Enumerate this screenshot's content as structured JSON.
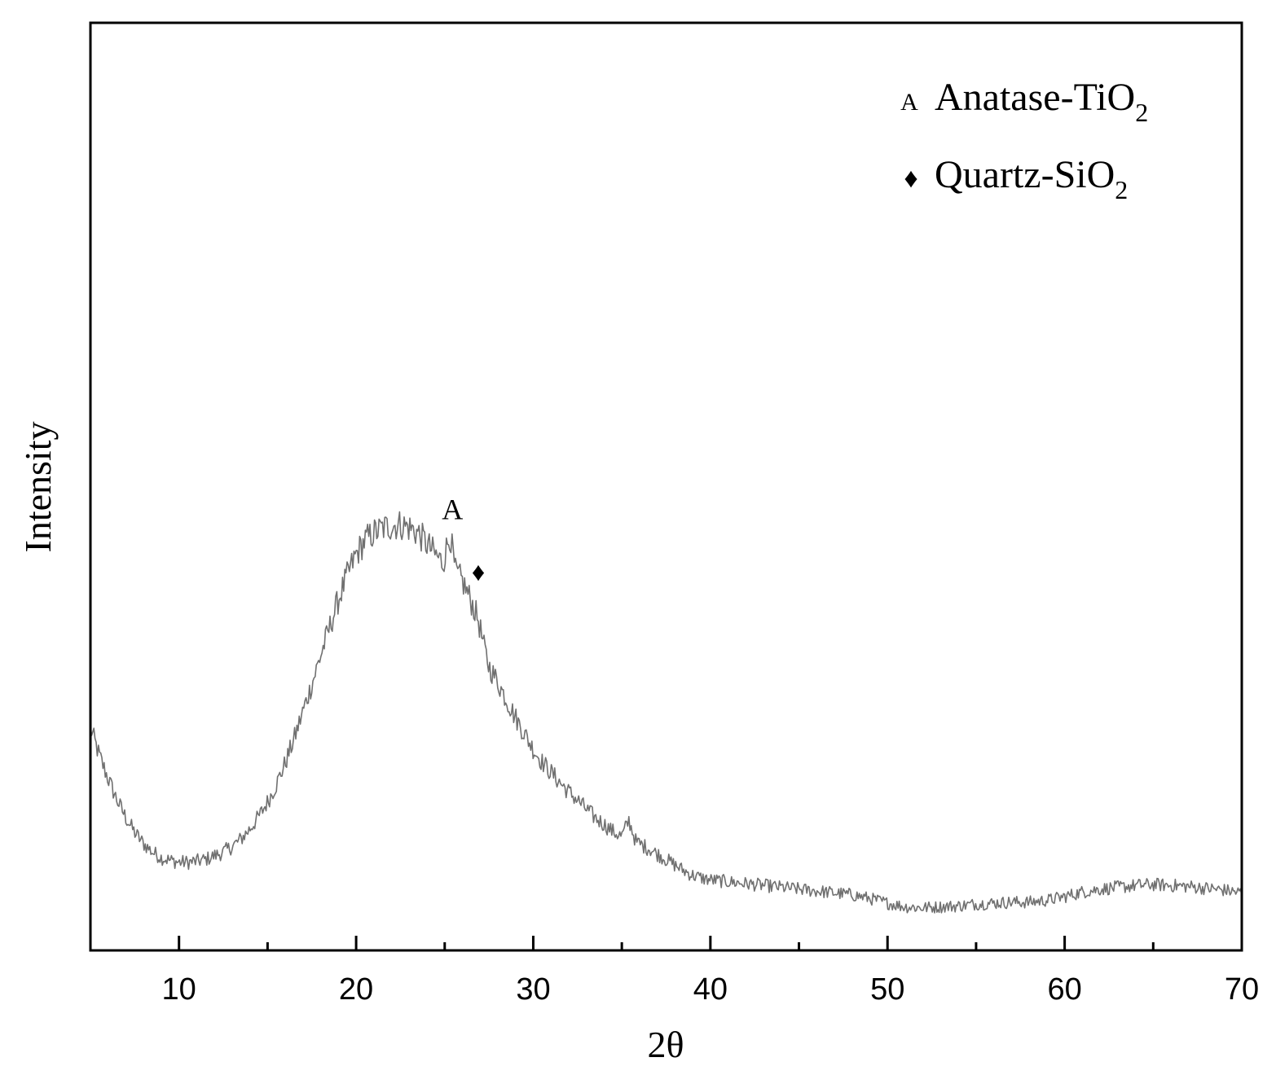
{
  "colors": {
    "series": "#707070",
    "axis": "#000000",
    "marker": "#000000"
  },
  "chart_data": {
    "type": "line",
    "xlabel": "2θ",
    "ylabel": "Intensity",
    "xlim": [
      5,
      70
    ],
    "ylim": [
      0,
      100
    ],
    "xticks_major": [
      10,
      20,
      30,
      40,
      50,
      60,
      70
    ],
    "xticks_minor": [
      15,
      25,
      35,
      45,
      55,
      65
    ],
    "yticks_visible": false,
    "grid": false,
    "legend": {
      "position": "top-right",
      "entries": [
        {
          "marker": "A",
          "marker_icon": "letter-a-marker",
          "name": "Anatase-TiO",
          "subscript": "2"
        },
        {
          "marker": "♦",
          "marker_icon": "diamond-icon",
          "name": "Quartz-SiO",
          "subscript": "2"
        }
      ]
    },
    "annotations": [
      {
        "text": "A",
        "x": 25.3,
        "y": 44.9,
        "icon": "letter-a-marker"
      },
      {
        "text": "♦",
        "x": 26.9,
        "y": 39.0,
        "icon": "diamond-icon"
      }
    ],
    "series": [
      {
        "x": [
          5.0,
          5.5,
          6.0,
          6.5,
          7.0,
          7.5,
          8.0,
          8.5,
          9.0,
          9.5,
          10.0,
          10.5,
          11.0,
          11.5,
          12.0,
          12.5,
          13.0,
          13.5,
          14.0,
          14.5,
          15.0,
          15.5,
          16.0,
          16.5,
          17.0,
          17.5,
          18.0,
          18.5,
          19.0,
          19.5,
          20.0,
          20.5,
          21.0,
          21.5,
          22.0,
          22.5,
          23.0,
          23.5,
          24.0,
          24.5,
          24.9,
          25.3,
          25.6,
          26.0,
          26.5,
          26.9,
          27.2,
          27.5,
          28.0,
          28.5,
          29.0,
          29.5,
          30.0,
          30.5,
          31.0,
          31.5,
          32.0,
          32.5,
          33.0,
          33.5,
          34.0,
          34.5,
          35.0,
          35.4,
          35.8,
          36.2,
          36.6,
          37.0,
          37.5,
          38.0,
          38.5,
          39.0,
          39.5,
          40.0,
          41.0,
          42.0,
          43.0,
          44.0,
          45.0,
          46.0,
          47.0,
          48.0,
          49.0,
          50.0,
          51.0,
          52.0,
          53.0,
          54.0,
          55.0,
          56.0,
          57.0,
          58.0,
          59.0,
          60.0,
          61.0,
          62.0,
          63.0,
          64.0,
          65.0,
          66.0,
          67.0,
          68.0,
          69.0,
          70.0
        ],
        "y": [
          24.0,
          21.0,
          18.5,
          16.2,
          14.3,
          12.7,
          11.5,
          10.6,
          10.0,
          9.7,
          9.5,
          9.5,
          9.6,
          9.8,
          10.2,
          10.6,
          11.2,
          12.0,
          13.1,
          14.4,
          16.0,
          17.9,
          20.2,
          22.8,
          25.8,
          28.7,
          31.8,
          34.8,
          37.8,
          40.4,
          42.7,
          44.2,
          45.0,
          45.5,
          45.8,
          45.9,
          45.6,
          45.0,
          43.8,
          42.6,
          41.8,
          44.9,
          40.8,
          39.8,
          37.6,
          35.6,
          32.8,
          30.6,
          28.9,
          27.0,
          25.1,
          23.4,
          21.7,
          20.3,
          19.2,
          18.1,
          17.1,
          16.2,
          15.2,
          14.3,
          13.6,
          12.8,
          12.3,
          14.0,
          11.7,
          11.3,
          10.9,
          10.4,
          9.8,
          9.2,
          8.6,
          8.1,
          7.8,
          7.6,
          7.4,
          7.2,
          7.0,
          6.8,
          6.6,
          6.4,
          6.2,
          6.0,
          5.6,
          5.1,
          4.7,
          4.6,
          4.7,
          4.8,
          5.0,
          5.1,
          5.2,
          5.2,
          5.4,
          5.8,
          6.3,
          6.6,
          6.8,
          7.0,
          7.1,
          7.0,
          6.9,
          6.7,
          6.5,
          6.2
        ]
      }
    ]
  }
}
